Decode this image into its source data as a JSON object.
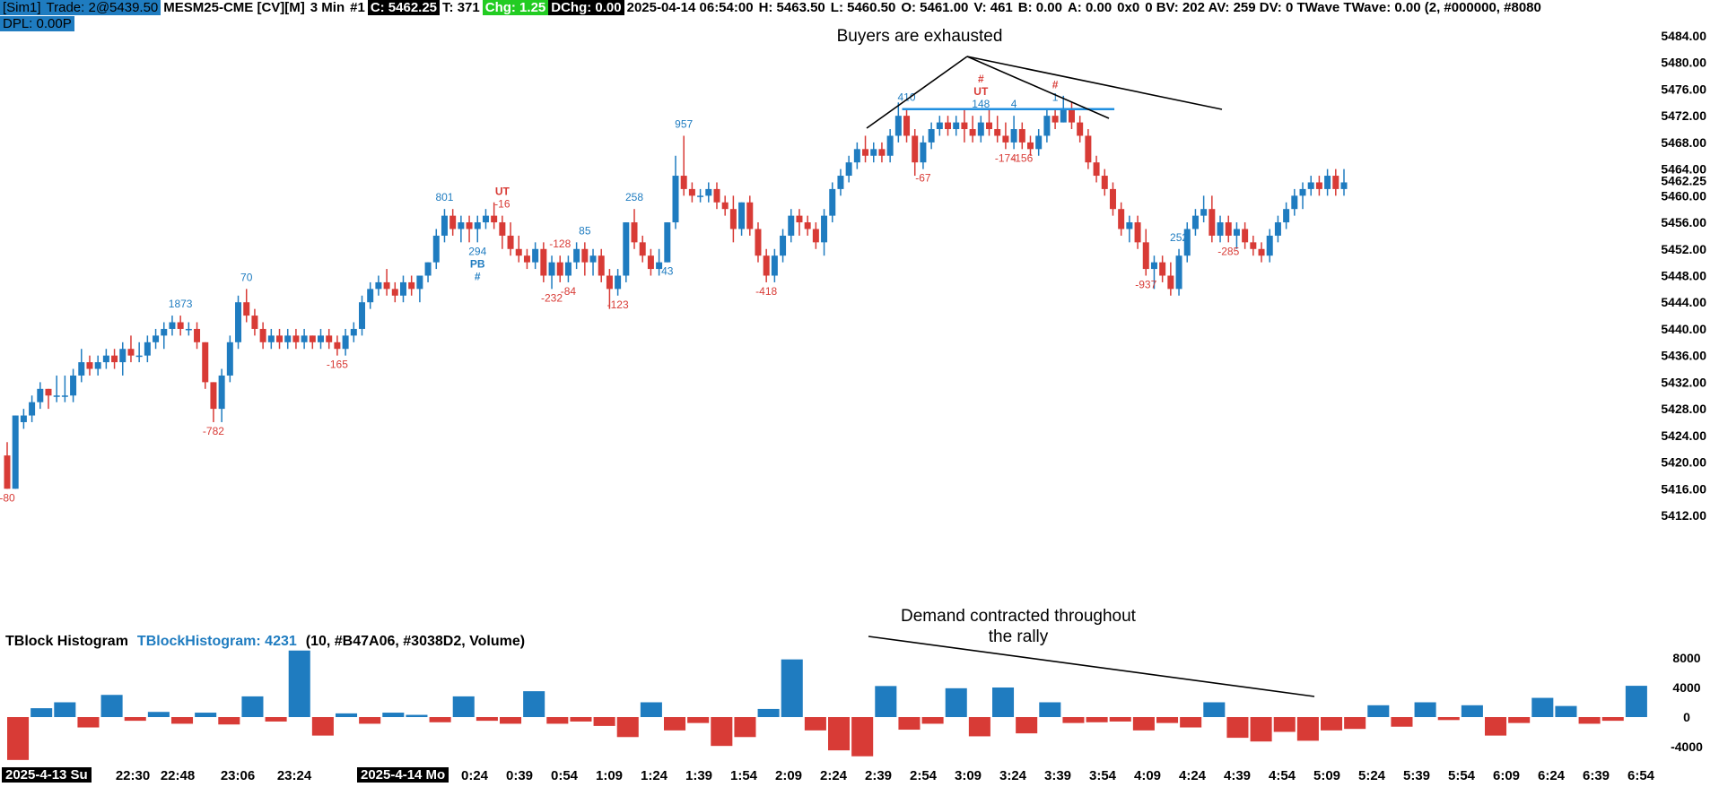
{
  "header": {
    "account": "[Sim1]",
    "trade": "Trade: 2@5439.50",
    "symbol": "MESM25-CME [CV][M]",
    "interval": "3 Min",
    "chart_num": "#1",
    "close": "C: 5462.25",
    "ticks": "T: 371",
    "change": "Chg: 1.25",
    "daily_change": "DChg: 0.00",
    "datetime": "2025-04-14 06:54:00",
    "high": "H: 5463.50",
    "low": "L: 5460.50",
    "open": "O: 5461.00",
    "volume": "V: 461",
    "bid": "B: 0.00",
    "ask": "A: 0.00",
    "bidask_size": "0x0",
    "tail": "0 BV: 202 AV: 259 DV: 0 TWave  TWave: 0.00  (2, #000000, #8080",
    "dpl": "DPL: 0.00P"
  },
  "colors": {
    "up": "#1F7CC0",
    "down": "#D83B36",
    "info_blue": "#1f7cc0",
    "chg_green": "#22cc22",
    "level_line": "#1F8FE0",
    "alert_red": "#e8222a"
  },
  "annotations": {
    "buyers": "Buyers are exhausted",
    "demand_line1": "Demand contracted throughout",
    "demand_line2": "the rally"
  },
  "price_axis": {
    "labels": [
      "5484.00",
      "5480.00",
      "5476.00",
      "5472.00",
      "5468.00",
      "5464.00",
      "5462.25",
      "5460.00",
      "5456.00",
      "5452.00",
      "5448.00",
      "5444.00",
      "5440.00",
      "5436.00",
      "5432.00",
      "5428.00",
      "5424.00",
      "5420.00",
      "5416.00",
      "5412.00"
    ],
    "values": [
      5484,
      5480,
      5476,
      5472,
      5468,
      5464,
      5462.25,
      5460,
      5456,
      5452,
      5448,
      5444,
      5440,
      5436,
      5432,
      5428,
      5424,
      5420,
      5416,
      5412
    ]
  },
  "histogram": {
    "title": "TBlock Histogram",
    "value_label": "TBlockHistogram: 4231",
    "params": "(10, #B47A06, #3038D2, Volume)",
    "axis_labels": [
      "8000",
      "4000",
      "0",
      "-4000"
    ],
    "axis_values": [
      8000,
      4000,
      0,
      -4000
    ],
    "values": [
      -5800,
      1200,
      2000,
      -1400,
      3000,
      -500,
      700,
      -900,
      600,
      -1000,
      2800,
      -600,
      9000,
      -2500,
      500,
      -900,
      600,
      300,
      -700,
      2800,
      -500,
      -900,
      3500,
      -900,
      -600,
      -1200,
      -2700,
      2000,
      -1800,
      -800,
      -3900,
      -2700,
      1100,
      7800,
      -1800,
      -4500,
      -5300,
      4200,
      -1700,
      -900,
      3900,
      -2600,
      4000,
      -2200,
      2000,
      -800,
      -700,
      -600,
      -1800,
      -800,
      -1400,
      2000,
      -2800,
      -3300,
      -2000,
      -3200,
      -1800,
      -1600,
      1600,
      -1300,
      2000,
      -400,
      1600,
      -2500,
      -800,
      2600,
      1500,
      -900,
      -500,
      4231
    ]
  },
  "chart_data": {
    "type": "candlestick",
    "title": "MESM25-CME [CV][M] 3 Min",
    "ylim": [
      5412,
      5486
    ],
    "bars": [
      [
        5421,
        5423,
        5416,
        5416
      ],
      [
        5416,
        5427,
        5416,
        5427
      ],
      [
        5426,
        5428,
        5425,
        5427
      ],
      [
        5427,
        5430,
        5426,
        5429
      ],
      [
        5429,
        5432,
        5428,
        5431
      ],
      [
        5431,
        5431,
        5428,
        5430
      ],
      [
        5430,
        5433,
        5429,
        5430
      ],
      [
        5430,
        5433,
        5429,
        5430
      ],
      [
        5430,
        5434,
        5429,
        5433
      ],
      [
        5433,
        5437,
        5432,
        5435
      ],
      [
        5435,
        5436,
        5433,
        5434
      ],
      [
        5434,
        5436,
        5433,
        5435
      ],
      [
        5435,
        5437,
        5434,
        5436
      ],
      [
        5436,
        5437,
        5434,
        5435
      ],
      [
        5435,
        5438,
        5433,
        5437
      ],
      [
        5437,
        5439,
        5435,
        5436
      ],
      [
        5436,
        5438,
        5435,
        5436
      ],
      [
        5436,
        5439,
        5435,
        5438
      ],
      [
        5438,
        5440,
        5437,
        5439
      ],
      [
        5439,
        5441,
        5437,
        5440
      ],
      [
        5440,
        5442,
        5439,
        5441
      ],
      [
        5441,
        5442,
        5439,
        5440
      ],
      [
        5440,
        5441,
        5439,
        5440
      ],
      [
        5440,
        5441,
        5437,
        5438
      ],
      [
        5438,
        5438,
        5431,
        5432
      ],
      [
        5432,
        5432,
        5426,
        5428
      ],
      [
        5428,
        5434,
        5426,
        5433
      ],
      [
        5433,
        5439,
        5432,
        5438
      ],
      [
        5438,
        5445,
        5437,
        5444
      ],
      [
        5444,
        5446,
        5441,
        5442
      ],
      [
        5442,
        5443,
        5439,
        5440
      ],
      [
        5440,
        5441,
        5437,
        5438
      ],
      [
        5438,
        5440,
        5437,
        5439
      ],
      [
        5439,
        5440,
        5437,
        5438
      ],
      [
        5438,
        5440,
        5437,
        5439
      ],
      [
        5439,
        5440,
        5437,
        5438
      ],
      [
        5438,
        5440,
        5437,
        5439
      ],
      [
        5439,
        5439,
        5437,
        5438
      ],
      [
        5438,
        5440,
        5437,
        5439
      ],
      [
        5439,
        5440,
        5437,
        5438
      ],
      [
        5438,
        5439,
        5436,
        5437
      ],
      [
        5437,
        5440,
        5436,
        5439
      ],
      [
        5439,
        5441,
        5438,
        5440
      ],
      [
        5440,
        5445,
        5439,
        5444
      ],
      [
        5444,
        5447,
        5443,
        5446
      ],
      [
        5446,
        5448,
        5445,
        5447
      ],
      [
        5447,
        5449,
        5445,
        5446
      ],
      [
        5446,
        5447,
        5444,
        5445
      ],
      [
        5445,
        5448,
        5444,
        5447
      ],
      [
        5447,
        5448,
        5445,
        5446
      ],
      [
        5446,
        5448,
        5444,
        5448
      ],
      [
        5448,
        5450,
        5447,
        5450
      ],
      [
        5450,
        5455,
        5449,
        5454
      ],
      [
        5454,
        5458,
        5453,
        5457
      ],
      [
        5457,
        5458,
        5454,
        5455
      ],
      [
        5455,
        5457,
        5453,
        5456
      ],
      [
        5456,
        5457,
        5453,
        5455
      ],
      [
        5455,
        5457,
        5453,
        5456
      ],
      [
        5456,
        5458,
        5455,
        5457
      ],
      [
        5457,
        5459,
        5455,
        5456
      ],
      [
        5456,
        5457,
        5452,
        5454
      ],
      [
        5454,
        5456,
        5451,
        5452
      ],
      [
        5452,
        5454,
        5450,
        5451
      ],
      [
        5451,
        5452,
        5449,
        5450
      ],
      [
        5450,
        5453,
        5449,
        5452
      ],
      [
        5452,
        5453,
        5447,
        5448
      ],
      [
        5448,
        5451,
        5446,
        5450
      ],
      [
        5450,
        5451,
        5447,
        5448
      ],
      [
        5448,
        5451,
        5447,
        5450
      ],
      [
        5450,
        5453,
        5449,
        5452
      ],
      [
        5452,
        5453,
        5448,
        5450
      ],
      [
        5450,
        5452,
        5448,
        5451
      ],
      [
        5451,
        5452,
        5447,
        5448
      ],
      [
        5448,
        5449,
        5443,
        5446
      ],
      [
        5446,
        5449,
        5445,
        5448
      ],
      [
        5448,
        5456,
        5447,
        5456
      ],
      [
        5456,
        5458,
        5452,
        5453
      ],
      [
        5453,
        5454,
        5450,
        5451
      ],
      [
        5451,
        5452,
        5448,
        5449
      ],
      [
        5449,
        5452,
        5448,
        5450
      ],
      [
        5450,
        5456,
        5450,
        5456
      ],
      [
        5456,
        5466,
        5455,
        5463
      ],
      [
        5463,
        5469,
        5460,
        5461
      ],
      [
        5461,
        5462,
        5459,
        5460
      ],
      [
        5460,
        5461,
        5459,
        5460
      ],
      [
        5460,
        5462,
        5459,
        5461
      ],
      [
        5461,
        5462,
        5458,
        5459
      ],
      [
        5459,
        5460,
        5457,
        5458
      ],
      [
        5458,
        5460,
        5453,
        5455
      ],
      [
        5455,
        5459,
        5454,
        5459
      ],
      [
        5459,
        5460,
        5454,
        5455
      ],
      [
        5455,
        5456,
        5450,
        5451
      ],
      [
        5451,
        5452,
        5447,
        5448
      ],
      [
        5448,
        5452,
        5447,
        5451
      ],
      [
        5451,
        5455,
        5450,
        5454
      ],
      [
        5454,
        5458,
        5453,
        5457
      ],
      [
        5457,
        5458,
        5454,
        5456
      ],
      [
        5456,
        5457,
        5454,
        5455
      ],
      [
        5455,
        5456,
        5452,
        5453
      ],
      [
        5453,
        5458,
        5451,
        5457
      ],
      [
        5457,
        5462,
        5456,
        5461
      ],
      [
        5461,
        5464,
        5460,
        5463
      ],
      [
        5463,
        5466,
        5462,
        5465
      ],
      [
        5465,
        5468,
        5464,
        5467
      ],
      [
        5467,
        5469,
        5465,
        5466
      ],
      [
        5466,
        5468,
        5465,
        5467
      ],
      [
        5467,
        5468,
        5465,
        5466
      ],
      [
        5466,
        5470,
        5465,
        5469
      ],
      [
        5469,
        5474,
        5468,
        5472
      ],
      [
        5472,
        5473,
        5468,
        5469
      ],
      [
        5469,
        5470,
        5463,
        5465
      ],
      [
        5465,
        5469,
        5464,
        5468
      ],
      [
        5468,
        5471,
        5467,
        5470
      ],
      [
        5470,
        5472,
        5469,
        5471
      ],
      [
        5471,
        5472,
        5469,
        5470
      ],
      [
        5470,
        5472,
        5469,
        5471
      ],
      [
        5471,
        5473,
        5468,
        5470
      ],
      [
        5470,
        5472,
        5468,
        5469
      ],
      [
        5469,
        5472,
        5468,
        5471
      ],
      [
        5471,
        5473,
        5469,
        5470
      ],
      [
        5470,
        5472,
        5468,
        5469
      ],
      [
        5469,
        5471,
        5467,
        5468
      ],
      [
        5468,
        5472,
        5467,
        5470
      ],
      [
        5470,
        5471,
        5467,
        5468
      ],
      [
        5468,
        5469,
        5466,
        5467
      ],
      [
        5467,
        5470,
        5466,
        5469
      ],
      [
        5469,
        5473,
        5468,
        5472
      ],
      [
        5472,
        5473,
        5470,
        5471
      ],
      [
        5471,
        5475,
        5471,
        5473
      ],
      [
        5473,
        5474,
        5470,
        5471
      ],
      [
        5471,
        5472,
        5468,
        5469
      ],
      [
        5469,
        5470,
        5464,
        5465
      ],
      [
        5465,
        5466,
        5462,
        5463
      ],
      [
        5463,
        5464,
        5460,
        5461
      ],
      [
        5461,
        5462,
        5457,
        5458
      ],
      [
        5458,
        5459,
        5454,
        5455
      ],
      [
        5455,
        5457,
        5453,
        5456
      ],
      [
        5456,
        5457,
        5452,
        5453
      ],
      [
        5453,
        5455,
        5448,
        5449
      ],
      [
        5449,
        5451,
        5446,
        5450
      ],
      [
        5450,
        5451,
        5447,
        5448
      ],
      [
        5448,
        5450,
        5445,
        5446
      ],
      [
        5446,
        5452,
        5445,
        5451
      ],
      [
        5451,
        5456,
        5450,
        5455
      ],
      [
        5455,
        5458,
        5454,
        5457
      ],
      [
        5457,
        5460,
        5456,
        5458
      ],
      [
        5458,
        5460,
        5453,
        5454
      ],
      [
        5454,
        5457,
        5453,
        5456
      ],
      [
        5456,
        5457,
        5453,
        5454
      ],
      [
        5454,
        5456,
        5452,
        5455
      ],
      [
        5455,
        5456,
        5452,
        5453
      ],
      [
        5453,
        5454,
        5451,
        5452
      ],
      [
        5452,
        5453,
        5450,
        5451
      ],
      [
        5451,
        5455,
        5450,
        5454
      ],
      [
        5454,
        5457,
        5453,
        5456
      ],
      [
        5456,
        5459,
        5455,
        5458
      ],
      [
        5458,
        5461,
        5457,
        5460
      ],
      [
        5460,
        5462,
        5458,
        5461
      ],
      [
        5461,
        5463,
        5460,
        5462
      ],
      [
        5462,
        5463,
        5460,
        5461
      ],
      [
        5461,
        5464,
        5460,
        5463
      ],
      [
        5463,
        5464,
        5460,
        5461
      ],
      [
        5461,
        5464,
        5460,
        5462
      ]
    ],
    "labels": [
      {
        "text": "-80",
        "bar": 0,
        "pos": "below",
        "color": "down"
      },
      {
        "text": "-782",
        "bar": 25,
        "pos": "below",
        "color": "down"
      },
      {
        "text": "1873",
        "bar": 21,
        "pos": "above",
        "color": "up"
      },
      {
        "text": "70",
        "bar": 29,
        "pos": "above",
        "color": "up"
      },
      {
        "text": "-165",
        "bar": 40,
        "pos": "below",
        "color": "down"
      },
      {
        "text": "801",
        "bar": 53,
        "pos": "above",
        "color": "up"
      },
      {
        "text": "294",
        "bar": 57,
        "pos": "below",
        "color": "up"
      },
      {
        "text": "PB",
        "bar": 57,
        "pos": "below2",
        "color": "up"
      },
      {
        "text": "#",
        "bar": 57,
        "pos": "below3",
        "color": "up"
      },
      {
        "text": "UT",
        "bar": 60,
        "pos": "above2",
        "color": "down"
      },
      {
        "text": "-16",
        "bar": 60,
        "pos": "above",
        "color": "down"
      },
      {
        "text": "-232",
        "bar": 66,
        "pos": "below",
        "color": "down"
      },
      {
        "text": "-128",
        "bar": 67,
        "pos": "above",
        "color": "down"
      },
      {
        "text": "-84",
        "bar": 68,
        "pos": "below",
        "color": "down"
      },
      {
        "text": "85",
        "bar": 70,
        "pos": "above",
        "color": "up"
      },
      {
        "text": "-123",
        "bar": 74,
        "pos": "below",
        "color": "down"
      },
      {
        "text": "258",
        "bar": 76,
        "pos": "above",
        "color": "up"
      },
      {
        "text": "43",
        "bar": 80,
        "pos": "below",
        "color": "up"
      },
      {
        "text": "957",
        "bar": 82,
        "pos": "above",
        "color": "up"
      },
      {
        "text": "-418",
        "bar": 92,
        "pos": "below",
        "color": "down"
      },
      {
        "text": "410",
        "bar": 109,
        "pos": "above",
        "color": "up"
      },
      {
        "text": "-67",
        "bar": 111,
        "pos": "below",
        "color": "down"
      },
      {
        "text": "148",
        "bar": 118,
        "pos": "above",
        "color": "up"
      },
      {
        "text": "UT",
        "bar": 118,
        "pos": "above2",
        "color": "down"
      },
      {
        "text": "#",
        "bar": 118,
        "pos": "above3",
        "color": "down"
      },
      {
        "text": "-174",
        "bar": 121,
        "pos": "below",
        "color": "down"
      },
      {
        "text": "4",
        "bar": 122,
        "pos": "above",
        "color": "up"
      },
      {
        "text": "-156",
        "bar": 123,
        "pos": "below",
        "color": "down"
      },
      {
        "text": "1",
        "bar": 127,
        "pos": "above",
        "color": "up"
      },
      {
        "text": "#",
        "bar": 127,
        "pos": "above2",
        "color": "down"
      },
      {
        "text": "-937",
        "bar": 138,
        "pos": "below",
        "color": "down"
      },
      {
        "text": "252",
        "bar": 142,
        "pos": "above",
        "color": "up"
      },
      {
        "text": "-285",
        "bar": 148,
        "pos": "below",
        "color": "down"
      }
    ],
    "resistance_level": 5473,
    "resistance_from_bar": 109,
    "resistance_to_bar": 132
  },
  "time_axis": {
    "date1": "2025-4-13 Su",
    "date2": "2025-4-14 Mo",
    "ticks": [
      "22:30",
      "22:48",
      "23:06",
      "23:24",
      "0:24",
      "0:39",
      "0:54",
      "1:09",
      "1:24",
      "1:39",
      "1:54",
      "2:09",
      "2:24",
      "2:39",
      "2:54",
      "3:09",
      "3:24",
      "3:39",
      "3:54",
      "4:09",
      "4:24",
      "4:39",
      "4:54",
      "5:09",
      "5:24",
      "5:39",
      "5:54",
      "6:09",
      "6:24",
      "6:39",
      "6:54"
    ]
  }
}
